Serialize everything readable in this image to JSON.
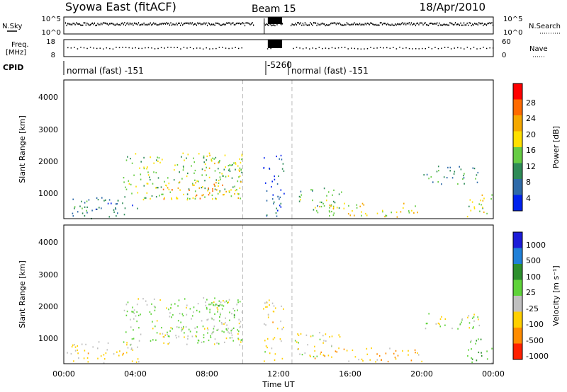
{
  "header": {
    "station": "Syowa East (fitACF)",
    "beam": "Beam 15",
    "date": "18/Apr/2010"
  },
  "nsky_panel": {
    "left_label": "N.Sky",
    "left_ticks": [
      "10^5",
      "10^0"
    ],
    "right_label": "N.Search",
    "right_ticks": [
      "10^5",
      "10^0"
    ]
  },
  "freq_panel": {
    "left_label_1": "Freq.",
    "left_label_2": "[MHz]",
    "left_ticks": [
      "18",
      "8"
    ],
    "right_label": "Nave",
    "right_ticks": [
      "60",
      "0"
    ]
  },
  "cpid": {
    "label": "CPID",
    "segments": [
      {
        "text": "normal (fast) -151",
        "start_h": 0,
        "end_h": 11.3
      },
      {
        "text": "-5260",
        "start_h": 11.3,
        "end_h": 12.7
      },
      {
        "text": "normal (fast) -151",
        "start_h": 12.7,
        "end_h": 24
      }
    ]
  },
  "power_panel": {
    "ylabel": "Slant Range [km]",
    "yticks": [
      "4000",
      "3000",
      "2000",
      "1000"
    ],
    "colorbar_label": "Power [dB]",
    "colorbar_ticks": [
      "28",
      "24",
      "20",
      "16",
      "12",
      "8",
      "4"
    ]
  },
  "velocity_panel": {
    "ylabel": "Slant Range [km]",
    "yticks": [
      "4000",
      "3000",
      "2000",
      "1000"
    ],
    "colorbar_label": "Velocity [m s⁻¹]",
    "colorbar_ticks": [
      "1000",
      "500",
      "100",
      "25",
      "-25",
      "-100",
      "-500",
      "-1000"
    ]
  },
  "xaxis": {
    "label": "Time UT",
    "ticks": [
      "00:00",
      "04:00",
      "08:00",
      "12:00",
      "16:00",
      "20:00",
      "00:00"
    ]
  },
  "chart_data": {
    "type": "heatmap",
    "x_range_hours": [
      0,
      24
    ],
    "y_range_km": [
      180,
      4600
    ],
    "dashed_markers_h": [
      10.0,
      12.75
    ],
    "power_colors": [
      "#ff0000",
      "#ff6a00",
      "#f5a800",
      "#ffe000",
      "#66cc44",
      "#2e8b57",
      "#2e6aa8",
      "#0022ee"
    ],
    "velocity_colors": [
      "#1c1cd8",
      "#2080d8",
      "#2d8f2d",
      "#5fd33a",
      "#c0c0c0",
      "#ffd000",
      "#ff8c00",
      "#ff2000"
    ],
    "echo_regions": [
      {
        "t0": 0.1,
        "t1": 4.2,
        "r0": 200,
        "r1": 900,
        "power": 8,
        "velocity": -40
      },
      {
        "t0": 3.3,
        "t1": 10.0,
        "r0": 800,
        "r1": 2300,
        "power": 14,
        "velocity": 30
      },
      {
        "t0": 5.5,
        "t1": 10.0,
        "r0": 800,
        "r1": 1400,
        "power": 22,
        "velocity": 10
      },
      {
        "t0": 7.5,
        "t1": 10.0,
        "r0": 1500,
        "r1": 2250,
        "power": 16,
        "velocity": 40
      },
      {
        "t0": 11.1,
        "t1": 12.3,
        "r0": 250,
        "r1": 2250,
        "power": 6,
        "velocity": -40
      },
      {
        "t0": 12.9,
        "t1": 15.5,
        "r0": 400,
        "r1": 1200,
        "power": 12,
        "velocity": -20
      },
      {
        "t0": 14.0,
        "t1": 20.0,
        "r0": 250,
        "r1": 700,
        "power": 18,
        "velocity": -90
      },
      {
        "t0": 20.0,
        "t1": 23.2,
        "r0": 1300,
        "r1": 1900,
        "power": 10,
        "velocity": 0
      },
      {
        "t0": 22.5,
        "t1": 24.0,
        "r0": 200,
        "r1": 1000,
        "power": 16,
        "velocity": 60
      }
    ]
  }
}
